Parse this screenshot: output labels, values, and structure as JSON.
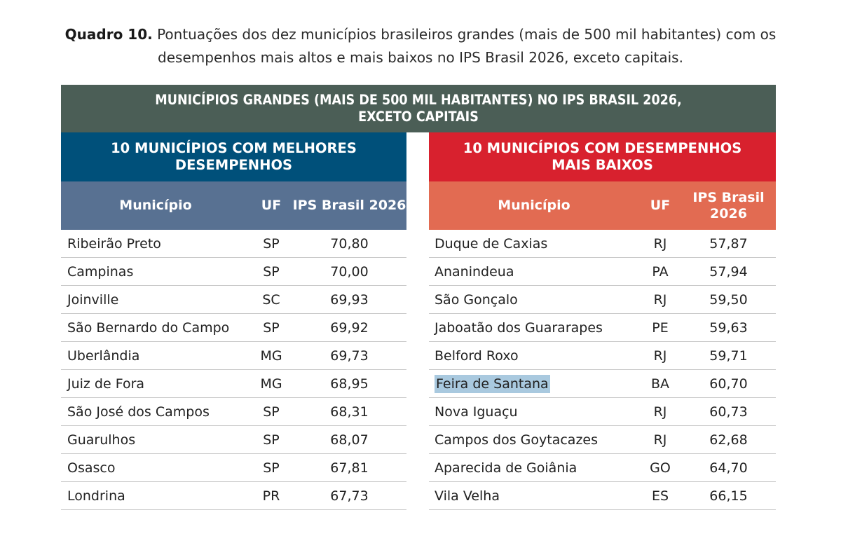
{
  "caption": {
    "label": "Quadro 10.",
    "text": "Pontuações dos dez municípios brasileiros grandes (mais de 500 mil habitantes) com os desempenhos mais altos e mais baixos no IPS Brasil 2026, exceto capitais."
  },
  "table": {
    "main_header": "MUNICÍPIOS GRANDES (MAIS DE 500 MIL HABITANTES) NO IPS BRASIL 2026, EXCETO CAPITAIS",
    "columns": {
      "municipio": "Município",
      "uf": "UF",
      "ips": "IPS Brasil 2026"
    },
    "best": {
      "title": "10 MUNICÍPIOS COM MELHORES DESEMPENHOS",
      "rows": [
        {
          "municipio": "Ribeirão Preto",
          "uf": "SP",
          "ips": "70,80"
        },
        {
          "municipio": "Campinas",
          "uf": "SP",
          "ips": "70,00"
        },
        {
          "municipio": "Joinville",
          "uf": "SC",
          "ips": "69,93"
        },
        {
          "municipio": "São Bernardo do Campo",
          "uf": "SP",
          "ips": "69,92"
        },
        {
          "municipio": "Uberlândia",
          "uf": "MG",
          "ips": "69,73"
        },
        {
          "municipio": "Juiz de Fora",
          "uf": "MG",
          "ips": "68,95"
        },
        {
          "municipio": "São José dos Campos",
          "uf": "SP",
          "ips": "68,31"
        },
        {
          "municipio": "Guarulhos",
          "uf": "SP",
          "ips": "68,07"
        },
        {
          "municipio": "Osasco",
          "uf": "SP",
          "ips": "67,81"
        },
        {
          "municipio": "Londrina",
          "uf": "PR",
          "ips": "67,73"
        }
      ]
    },
    "worst": {
      "title": "10 MUNICÍPIOS COM DESEMPENHOS MAIS BAIXOS",
      "rows": [
        {
          "municipio": "Duque de Caxias",
          "uf": "RJ",
          "ips": "57,87"
        },
        {
          "municipio": "Ananindeua",
          "uf": "PA",
          "ips": "57,94"
        },
        {
          "municipio": "São Gonçalo",
          "uf": "RJ",
          "ips": "59,50"
        },
        {
          "municipio": "Jaboatão dos Guararapes",
          "uf": "PE",
          "ips": "59,63"
        },
        {
          "municipio": "Belford Roxo",
          "uf": "RJ",
          "ips": "59,71"
        },
        {
          "municipio": "Feira de Santana",
          "uf": "BA",
          "ips": "60,70"
        },
        {
          "municipio": "Nova Iguaçu",
          "uf": "RJ",
          "ips": "60,73"
        },
        {
          "municipio": "Campos dos Goytacazes",
          "uf": "RJ",
          "ips": "62,68"
        },
        {
          "municipio": "Aparecida de Goiânia",
          "uf": "GO",
          "ips": "64,70"
        },
        {
          "municipio": "Vila Velha",
          "uf": "ES",
          "ips": "66,15"
        }
      ]
    }
  },
  "colors": {
    "main_header": "#4b5e56",
    "best_title": "#00507a",
    "best_columns": "#587192",
    "worst_title": "#d8212e",
    "worst_columns": "#e26b52",
    "highlight": "#a9c9df"
  }
}
